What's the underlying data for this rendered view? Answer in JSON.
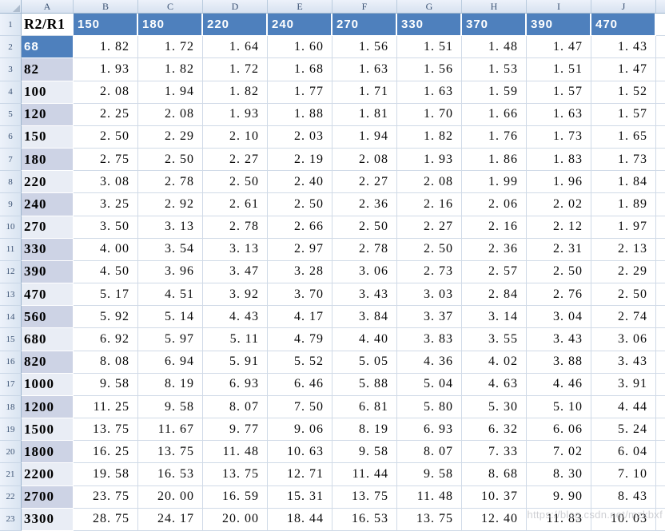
{
  "sheet": {
    "column_letters": [
      "A",
      "B",
      "C",
      "D",
      "E",
      "F",
      "G",
      "H",
      "I",
      "J"
    ],
    "header_row": {
      "row_num": "1",
      "corner_label": "R2/R1",
      "values": [
        "150",
        "180",
        "220",
        "240",
        "270",
        "330",
        "370",
        "390",
        "470"
      ]
    },
    "data_rows": [
      {
        "row_num": "2",
        "r2": "68",
        "shade": "selected",
        "values": [
          "1.82",
          "1.72",
          "1.64",
          "1.60",
          "1.56",
          "1.51",
          "1.48",
          "1.47",
          "1.43"
        ]
      },
      {
        "row_num": "3",
        "r2": "82",
        "shade": "dark",
        "values": [
          "1.93",
          "1.82",
          "1.72",
          "1.68",
          "1.63",
          "1.56",
          "1.53",
          "1.51",
          "1.47"
        ]
      },
      {
        "row_num": "4",
        "r2": "100",
        "shade": "light",
        "values": [
          "2.08",
          "1.94",
          "1.82",
          "1.77",
          "1.71",
          "1.63",
          "1.59",
          "1.57",
          "1.52"
        ]
      },
      {
        "row_num": "5",
        "r2": "120",
        "shade": "dark",
        "values": [
          "2.25",
          "2.08",
          "1.93",
          "1.88",
          "1.81",
          "1.70",
          "1.66",
          "1.63",
          "1.57"
        ]
      },
      {
        "row_num": "6",
        "r2": "150",
        "shade": "light",
        "values": [
          "2.50",
          "2.29",
          "2.10",
          "2.03",
          "1.94",
          "1.82",
          "1.76",
          "1.73",
          "1.65"
        ]
      },
      {
        "row_num": "7",
        "r2": "180",
        "shade": "dark",
        "values": [
          "2.75",
          "2.50",
          "2.27",
          "2.19",
          "2.08",
          "1.93",
          "1.86",
          "1.83",
          "1.73"
        ]
      },
      {
        "row_num": "8",
        "r2": "220",
        "shade": "light",
        "values": [
          "3.08",
          "2.78",
          "2.50",
          "2.40",
          "2.27",
          "2.08",
          "1.99",
          "1.96",
          "1.84"
        ]
      },
      {
        "row_num": "9",
        "r2": "240",
        "shade": "dark",
        "values": [
          "3.25",
          "2.92",
          "2.61",
          "2.50",
          "2.36",
          "2.16",
          "2.06",
          "2.02",
          "1.89"
        ]
      },
      {
        "row_num": "10",
        "r2": "270",
        "shade": "light",
        "values": [
          "3.50",
          "3.13",
          "2.78",
          "2.66",
          "2.50",
          "2.27",
          "2.16",
          "2.12",
          "1.97"
        ]
      },
      {
        "row_num": "11",
        "r2": "330",
        "shade": "dark",
        "values": [
          "4.00",
          "3.54",
          "3.13",
          "2.97",
          "2.78",
          "2.50",
          "2.36",
          "2.31",
          "2.13"
        ]
      },
      {
        "row_num": "12",
        "r2": "390",
        "shade": "dark",
        "values": [
          "4.50",
          "3.96",
          "3.47",
          "3.28",
          "3.06",
          "2.73",
          "2.57",
          "2.50",
          "2.29"
        ]
      },
      {
        "row_num": "13",
        "r2": "470",
        "shade": "light",
        "values": [
          "5.17",
          "4.51",
          "3.92",
          "3.70",
          "3.43",
          "3.03",
          "2.84",
          "2.76",
          "2.50"
        ]
      },
      {
        "row_num": "14",
        "r2": "560",
        "shade": "dark",
        "values": [
          "5.92",
          "5.14",
          "4.43",
          "4.17",
          "3.84",
          "3.37",
          "3.14",
          "3.04",
          "2.74"
        ]
      },
      {
        "row_num": "15",
        "r2": "680",
        "shade": "light",
        "values": [
          "6.92",
          "5.97",
          "5.11",
          "4.79",
          "4.40",
          "3.83",
          "3.55",
          "3.43",
          "3.06"
        ]
      },
      {
        "row_num": "16",
        "r2": "820",
        "shade": "dark",
        "values": [
          "8.08",
          "6.94",
          "5.91",
          "5.52",
          "5.05",
          "4.36",
          "4.02",
          "3.88",
          "3.43"
        ]
      },
      {
        "row_num": "17",
        "r2": "1000",
        "shade": "light",
        "values": [
          "9.58",
          "8.19",
          "6.93",
          "6.46",
          "5.88",
          "5.04",
          "4.63",
          "4.46",
          "3.91"
        ]
      },
      {
        "row_num": "18",
        "r2": "1200",
        "shade": "dark",
        "values": [
          "11.25",
          "9.58",
          "8.07",
          "7.50",
          "6.81",
          "5.80",
          "5.30",
          "5.10",
          "4.44"
        ]
      },
      {
        "row_num": "19",
        "r2": "1500",
        "shade": "light",
        "values": [
          "13.75",
          "11.67",
          "9.77",
          "9.06",
          "8.19",
          "6.93",
          "6.32",
          "6.06",
          "5.24"
        ]
      },
      {
        "row_num": "20",
        "r2": "1800",
        "shade": "dark",
        "values": [
          "16.25",
          "13.75",
          "11.48",
          "10.63",
          "9.58",
          "8.07",
          "7.33",
          "7.02",
          "6.04"
        ]
      },
      {
        "row_num": "21",
        "r2": "2200",
        "shade": "light",
        "values": [
          "19.58",
          "16.53",
          "13.75",
          "12.71",
          "11.44",
          "9.58",
          "8.68",
          "8.30",
          "7.10"
        ]
      },
      {
        "row_num": "22",
        "r2": "2700",
        "shade": "dark",
        "values": [
          "23.75",
          "20.00",
          "16.59",
          "15.31",
          "13.75",
          "11.48",
          "10.37",
          "9.90",
          "8.43"
        ]
      },
      {
        "row_num": "23",
        "r2": "3300",
        "shade": "light",
        "values": [
          "28.75",
          "24.17",
          "20.00",
          "18.44",
          "16.53",
          "13.75",
          "12.40",
          "11.83",
          "10.03"
        ]
      }
    ]
  },
  "colors": {
    "accent_blue": "#4E80BD",
    "band_dark": "#CDD3E5",
    "band_light": "#E9EDF5",
    "grid_line": "#D0DAE7",
    "chrome_border": "#9EB6CE",
    "chrome_fill_top": "#EDF2FA",
    "chrome_fill_bottom": "#D7E2F0",
    "header_text": "#3B5273"
  },
  "watermark": {
    "text": "https://blog.csdn.net/mzkbxf"
  }
}
